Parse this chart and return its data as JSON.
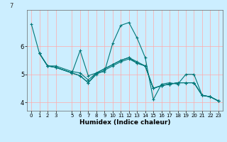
{
  "title": "",
  "xlabel": "Humidex (Indice chaleur)",
  "bg_color": "#cceeff",
  "grid_color": "#ffaaaa",
  "line_color": "#007777",
  "xlim": [
    -0.5,
    23.5
  ],
  "ylim": [
    3.7,
    7.3
  ],
  "yticks": [
    4,
    5,
    6
  ],
  "ytick_label_7": true,
  "xtick_labels": [
    "0",
    "1",
    "2",
    "3",
    "5",
    "6",
    "7",
    "8",
    "9",
    "10",
    "11",
    "12",
    "13",
    "14",
    "15",
    "16",
    "17",
    "18",
    "19",
    "20",
    "21",
    "22",
    "23"
  ],
  "xtick_positions": [
    0,
    1,
    2,
    3,
    5,
    6,
    7,
    8,
    9,
    10,
    11,
    12,
    13,
    14,
    15,
    16,
    17,
    18,
    19,
    20,
    21,
    22,
    23
  ],
  "lines": [
    {
      "x": [
        0,
        1,
        2,
        3,
        5,
        6,
        7,
        8,
        9,
        10,
        11,
        12,
        13,
        14,
        15,
        16,
        17,
        18,
        19,
        20,
        21,
        22,
        23
      ],
      "y": [
        6.8,
        5.75,
        5.3,
        5.3,
        5.1,
        5.05,
        4.8,
        5.05,
        5.1,
        6.1,
        6.75,
        6.85,
        6.3,
        5.6,
        4.1,
        4.65,
        4.7,
        4.65,
        5.0,
        5.0,
        4.25,
        4.2,
        4.05
      ]
    },
    {
      "x": [
        1,
        2,
        3,
        5,
        6,
        7,
        8,
        9,
        10,
        11,
        12,
        13,
        14,
        15,
        16,
        17,
        18,
        19,
        20,
        21,
        22,
        23
      ],
      "y": [
        5.75,
        5.3,
        5.25,
        5.05,
        4.95,
        4.7,
        5.0,
        5.15,
        5.3,
        5.45,
        5.55,
        5.4,
        5.3,
        4.5,
        4.6,
        4.65,
        4.7,
        4.7,
        4.7,
        4.25,
        4.2,
        4.05
      ]
    },
    {
      "x": [
        1,
        2,
        3,
        5,
        6,
        7,
        8,
        9,
        10,
        11,
        12,
        13,
        14,
        15,
        16,
        17,
        18,
        19,
        20,
        21,
        22,
        23
      ],
      "y": [
        5.75,
        5.3,
        5.25,
        5.05,
        5.85,
        4.95,
        5.05,
        5.2,
        5.35,
        5.5,
        5.6,
        5.4,
        5.3,
        4.5,
        4.6,
        4.65,
        4.7,
        4.7,
        4.7,
        4.25,
        4.2,
        4.05
      ]
    },
    {
      "x": [
        1,
        2,
        3,
        5,
        6,
        7,
        8,
        9,
        10,
        11,
        12,
        13,
        14,
        15,
        16,
        17,
        18,
        19,
        20,
        21,
        22,
        23
      ],
      "y": [
        5.75,
        5.3,
        5.25,
        5.05,
        4.95,
        4.7,
        5.05,
        5.2,
        5.35,
        5.5,
        5.6,
        5.45,
        5.3,
        4.5,
        4.6,
        4.65,
        4.7,
        4.7,
        4.7,
        4.25,
        4.2,
        4.05
      ]
    }
  ]
}
